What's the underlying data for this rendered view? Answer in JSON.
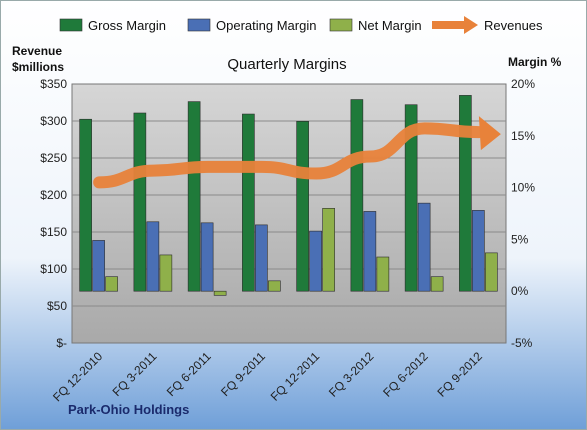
{
  "chart_data": {
    "type": "bar",
    "title": "Quarterly Margins",
    "company": "Park-Ohio Holdings",
    "categories": [
      "FQ 12-2010",
      "FQ 3-2011",
      "FQ 6-2011",
      "FQ 9-2011",
      "FQ 12-2011",
      "FQ 3-2012",
      "FQ 6-2012",
      "FQ 9-2012"
    ],
    "series": [
      {
        "name": "Gross Margin",
        "axis": "right",
        "color": "#1f7a3a",
        "values": [
          16.6,
          17.2,
          18.3,
          17.1,
          16.4,
          18.5,
          18.0,
          18.9
        ]
      },
      {
        "name": "Operating Margin",
        "axis": "right",
        "color": "#4a6fb5",
        "values": [
          4.9,
          6.7,
          6.6,
          6.4,
          5.8,
          7.7,
          8.5,
          7.8
        ]
      },
      {
        "name": "Net Margin",
        "axis": "right",
        "color": "#8fb04a",
        "values": [
          1.4,
          3.5,
          -0.4,
          1.0,
          8.0,
          3.3,
          1.4,
          3.7
        ]
      },
      {
        "name": "Revenues",
        "axis": "left",
        "type": "line",
        "color": "#e8823a",
        "values": [
          217,
          233,
          238,
          238,
          229,
          252,
          290,
          285
        ]
      }
    ],
    "y_left": {
      "title_line1": "Revenue",
      "title_line2": "$millions",
      "min": 0,
      "max": 350,
      "step": 50,
      "ticks": [
        "$-",
        "$50",
        "$100",
        "$150",
        "$200",
        "$250",
        "$300",
        "$350"
      ]
    },
    "y_right": {
      "title": "Margin %",
      "min": -5,
      "max": 20,
      "step": 5,
      "ticks": [
        "-5%",
        "0%",
        "5%",
        "10%",
        "15%",
        "20%"
      ]
    },
    "legend_position": "top",
    "grid": true
  }
}
